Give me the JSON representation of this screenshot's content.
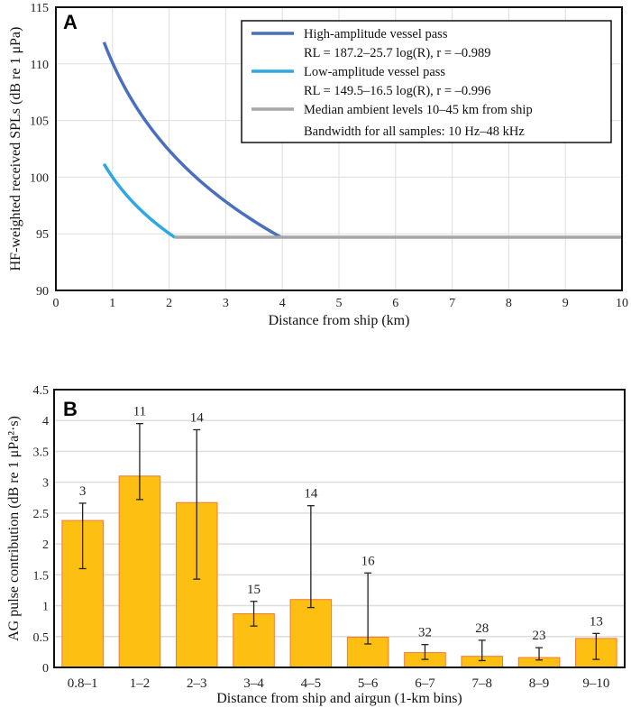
{
  "chart_data": [
    {
      "type": "line",
      "panel_label": "A",
      "xlabel": "Distance from ship (km)",
      "ylabel": "HF-weighted received SPLs (dB re 1 μPa)",
      "xlim": [
        0,
        10
      ],
      "ylim": [
        90,
        115
      ],
      "xticks": [
        "0",
        "1",
        "2",
        "3",
        "4",
        "5",
        "6",
        "7",
        "8",
        "9",
        "10"
      ],
      "yticks": [
        "90",
        "95",
        "100",
        "105",
        "110",
        "115"
      ],
      "grid": true,
      "legend_position": "top-right",
      "series": [
        {
          "name": "High-amplitude vessel pass",
          "equation": "RL = 187.2–25.7 log(R), r = –0.989",
          "intercept": 187.2,
          "slope": 25.7,
          "x_range_km": [
            0.85,
            3.97
          ],
          "color": "#4a6fbf"
        },
        {
          "name": "Low-amplitude vessel pass",
          "equation": "RL = 149.5–16.5 log(R), r = –0.996",
          "intercept": 149.5,
          "slope": 16.5,
          "x_range_km": [
            0.85,
            2.1
          ],
          "color": "#2ea8e0"
        },
        {
          "name": "Median ambient levels 10–45 km from ship",
          "value": 94.7,
          "x_range_km": [
            2.1,
            10
          ],
          "color": "#a6a6a6"
        }
      ],
      "legend_note": "Bandwidth for all samples: 10 Hz–48 kHz"
    },
    {
      "type": "bar",
      "panel_label": "B",
      "xlabel": "Distance from ship and airgun (1-km bins)",
      "ylabel": "AG pulse contribution (dB re 1 μPa²·s)",
      "ylim": [
        0,
        4.5
      ],
      "yticks": [
        "0",
        "0.5",
        "1",
        "1.5",
        "2",
        "2.5",
        "3",
        "3.5",
        "4",
        "4.5"
      ],
      "categories": [
        "0.8–1",
        "1–2",
        "2–3",
        "3–4",
        "4–5",
        "5–6",
        "6–7",
        "7–8",
        "8–9",
        "9–10"
      ],
      "values": [
        2.38,
        3.1,
        2.67,
        0.87,
        1.1,
        0.49,
        0.24,
        0.18,
        0.16,
        0.47
      ],
      "error_low": [
        1.6,
        2.72,
        1.43,
        0.67,
        0.97,
        0.38,
        0.13,
        0.11,
        0.12,
        0.13
      ],
      "error_high": [
        2.66,
        3.95,
        3.85,
        1.07,
        2.62,
        1.53,
        0.37,
        0.44,
        0.32,
        0.55
      ],
      "counts": [
        "3",
        "11",
        "14",
        "15",
        "14",
        "16",
        "32",
        "28",
        "23",
        "13"
      ],
      "bar_color": "#fdbf12",
      "bar_edge": "#f07a3a"
    }
  ]
}
